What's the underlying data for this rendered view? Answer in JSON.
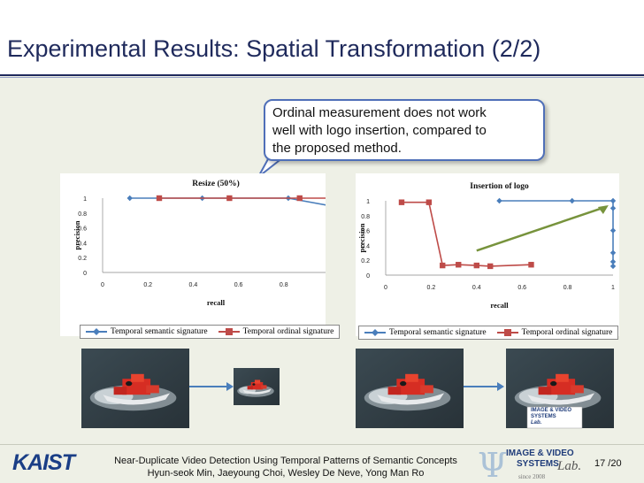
{
  "slide": {
    "title": "Experimental Results: Spatial Transformation (2/2)",
    "callout": {
      "lines": [
        "Ordinal measurement does not work",
        "well with logo insertion, compared to",
        "the proposed method."
      ]
    },
    "footer": {
      "logo_text": "KAIST",
      "line1": "Near-Duplicate Video Detection Using Temporal Patterns of Semantic Concepts",
      "line2": "Hyun-seok Min, Jaeyoung Choi, Wesley De Neve, Yong Man Ro",
      "page": "17 /20",
      "lab_logo_line1": "IMAGE & VIDEO",
      "lab_logo_line2": "SYSTEMS",
      "lab_logo_line3": "Lab.",
      "lab_logo_since": "since 2008"
    },
    "thumb_logo_line1": "IMAGE & VIDEO",
    "thumb_logo_line2": "SYSTEMS",
    "thumb_logo_line3": "Lab."
  },
  "colors": {
    "title": "#1f2a5c",
    "semantic_series": "#4a7ebb",
    "ordinal_series": "#be4b48",
    "arrow": "#77933c",
    "callout_border": "#4f6fb8"
  },
  "chart_data": [
    {
      "type": "line",
      "title": "Resize (50%)",
      "xlabel": "recall",
      "ylabel": "precision",
      "xlim": [
        0,
        1
      ],
      "ylim": [
        0,
        1
      ],
      "xticks": [
        "0",
        "0.2",
        "0.4",
        "0.6",
        "0.8",
        "1"
      ],
      "yticks": [
        "0",
        "0.2",
        "0.4",
        "0.6",
        "0.8",
        "1"
      ],
      "legend": "bottom",
      "series": [
        {
          "name": "Temporal semantic signature",
          "points": [
            [
              0.12,
              1
            ],
            [
              0.44,
              1
            ],
            [
              0.82,
              1
            ],
            [
              1,
              0.9
            ],
            [
              1,
              0.8
            ],
            [
              1,
              0.5
            ],
            [
              1,
              0.3
            ],
            [
              1,
              0.17
            ]
          ]
        },
        {
          "name": "Temporal ordinal signature",
          "points": [
            [
              0.25,
              1
            ],
            [
              0.56,
              1
            ],
            [
              0.87,
              1
            ],
            [
              1,
              1
            ],
            [
              1,
              0.8
            ],
            [
              1,
              0.48
            ],
            [
              1,
              0.38
            ]
          ]
        }
      ]
    },
    {
      "type": "line",
      "title": "Insertion of logo",
      "xlabel": "recall",
      "ylabel": "precision",
      "xlim": [
        0,
        1
      ],
      "ylim": [
        0,
        1
      ],
      "xticks": [
        "0",
        "0.2",
        "0.4",
        "0.6",
        "0.8",
        "1"
      ],
      "yticks": [
        "0",
        "0.2",
        "0.4",
        "0.6",
        "0.8",
        "1"
      ],
      "legend": "bottom",
      "series": [
        {
          "name": "Temporal semantic signature",
          "points": [
            [
              0.5,
              1
            ],
            [
              0.82,
              1
            ],
            [
              1,
              1
            ],
            [
              1,
              0.9
            ],
            [
              1,
              0.6
            ],
            [
              1,
              0.3
            ],
            [
              1,
              0.18
            ],
            [
              1,
              0.12
            ]
          ]
        },
        {
          "name": "Temporal ordinal signature",
          "points": [
            [
              0.07,
              0.98
            ],
            [
              0.19,
              0.98
            ],
            [
              0.25,
              0.13
            ],
            [
              0.32,
              0.14
            ],
            [
              0.4,
              0.13
            ],
            [
              0.46,
              0.12
            ],
            [
              0.64,
              0.14
            ]
          ]
        }
      ]
    }
  ]
}
